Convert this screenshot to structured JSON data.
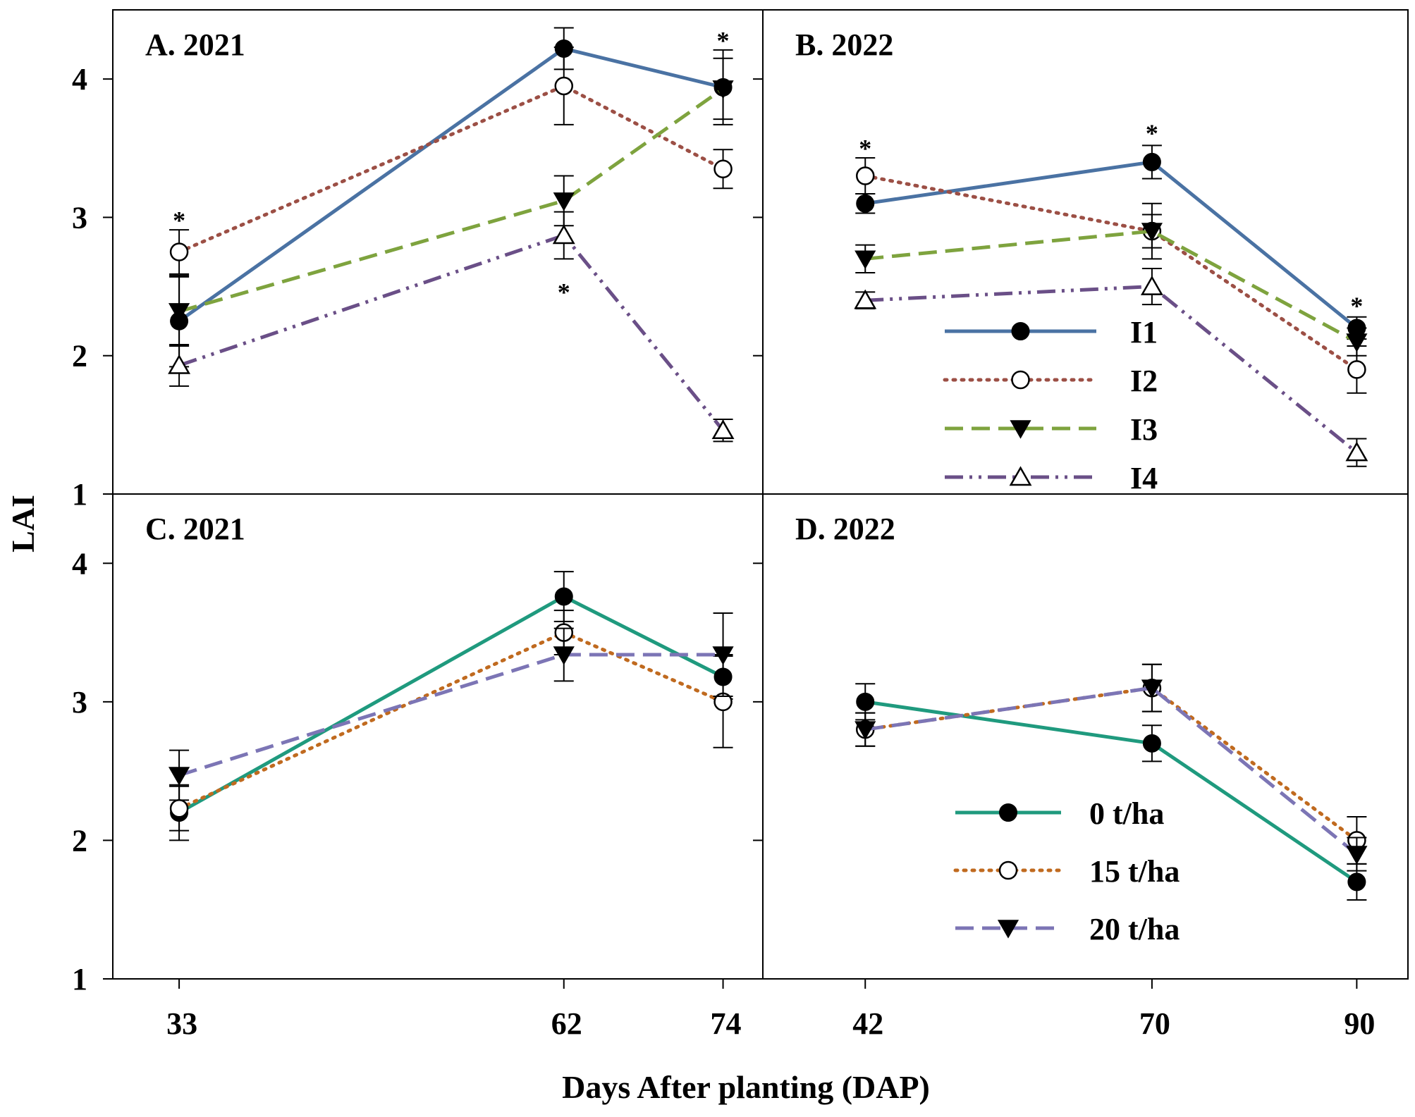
{
  "figure": {
    "y_axis_title": "LAI",
    "x_axis_title": "Days After planting (DAP)",
    "colors": {
      "I1": "#4a72a3",
      "I2": "#9c4f45",
      "I3": "#7ea33e",
      "I4": "#6a4f87",
      "t0": "#1f9a7e",
      "t15": "#c06a1f",
      "t20": "#7c75b5",
      "marker": "#000000"
    }
  },
  "chart_data": [
    {
      "id": "A",
      "type": "line",
      "title": "A. 2021",
      "x": [
        33,
        62,
        74
      ],
      "x_tick_labels": [
        "33",
        "62",
        "74"
      ],
      "xlim": [
        28,
        77
      ],
      "ylim": [
        1,
        4.5
      ],
      "y_ticks": [
        1,
        2,
        3,
        4
      ],
      "y_tick_labels": [
        "1",
        "2",
        "3",
        "4"
      ],
      "series": [
        {
          "name": "I1",
          "key": "I1",
          "values": [
            2.25,
            4.22,
            3.94
          ],
          "err": [
            0.33,
            0.15,
            0.27
          ],
          "marker": "filled-circle",
          "dash": "solid"
        },
        {
          "name": "I2",
          "key": "I2",
          "values": [
            2.75,
            3.95,
            3.35
          ],
          "err": [
            0.16,
            0.28,
            0.14
          ],
          "marker": "open-circle",
          "dash": "dotted"
        },
        {
          "name": "I3",
          "key": "I3",
          "values": [
            2.32,
            3.12,
            3.93
          ],
          "err": [
            0.25,
            0.18,
            0.22
          ],
          "marker": "filled-triangle-down",
          "dash": "dashed"
        },
        {
          "name": "I4",
          "key": "I4",
          "values": [
            1.93,
            2.87,
            1.46
          ],
          "err": [
            0.15,
            0.17,
            0.08
          ],
          "marker": "open-triangle-up",
          "dash": "dashdotdot"
        }
      ],
      "significance": [
        {
          "label": "*",
          "x": 33,
          "y": 3.0
        },
        {
          "label": "*",
          "x": 62,
          "y": 2.48
        },
        {
          "label": "*",
          "x": 74,
          "y": 4.3
        }
      ]
    },
    {
      "id": "B",
      "type": "line",
      "title": "B. 2022",
      "x": [
        42,
        70,
        90
      ],
      "x_tick_labels": [
        "42",
        "70",
        "90"
      ],
      "xlim": [
        32,
        95
      ],
      "ylim": [
        1,
        4.5
      ],
      "y_ticks": [
        1,
        2,
        3,
        4
      ],
      "y_tick_labels": [],
      "series": [
        {
          "name": "I1",
          "key": "I1",
          "values": [
            3.1,
            3.4,
            2.2
          ],
          "err": [
            0.07,
            0.12,
            0.08
          ],
          "marker": "filled-circle",
          "dash": "solid"
        },
        {
          "name": "I2",
          "key": "I2",
          "values": [
            3.3,
            2.9,
            1.9
          ],
          "err": [
            0.13,
            0.2,
            0.17
          ],
          "marker": "open-circle",
          "dash": "dotted"
        },
        {
          "name": "I3",
          "key": "I3",
          "values": [
            2.7,
            2.9,
            2.1
          ],
          "err": [
            0.1,
            0.12,
            0.1
          ],
          "marker": "filled-triangle-down",
          "dash": "dashed"
        },
        {
          "name": "I4",
          "key": "I4",
          "values": [
            2.4,
            2.5,
            1.3
          ],
          "err": [
            0.06,
            0.13,
            0.1
          ],
          "marker": "open-triangle-up",
          "dash": "dashdotdot"
        }
      ],
      "significance": [
        {
          "label": "*",
          "x": 42,
          "y": 3.52
        },
        {
          "label": "*",
          "x": 70,
          "y": 3.63
        },
        {
          "label": "*",
          "x": 90,
          "y": 2.38
        }
      ],
      "legend": {
        "placement": "lower-right",
        "entries": [
          "I1",
          "I2",
          "I3",
          "I4"
        ]
      }
    },
    {
      "id": "C",
      "type": "line",
      "title": "C. 2021",
      "x": [
        33,
        62,
        74
      ],
      "x_tick_labels": [
        "33",
        "62",
        "74"
      ],
      "xlim": [
        28,
        77
      ],
      "ylim": [
        1,
        4.5
      ],
      "y_ticks": [
        1,
        2,
        3,
        4
      ],
      "y_tick_labels": [
        "1",
        "2",
        "3",
        "4"
      ],
      "series": [
        {
          "name": "0 t/ha",
          "key": "t0",
          "values": [
            2.2,
            3.76,
            3.18
          ],
          "err": [
            0.2,
            0.18,
            0.16
          ],
          "marker": "filled-circle",
          "dash": "solid"
        },
        {
          "name": "15 t/ha",
          "key": "t15",
          "values": [
            2.23,
            3.5,
            3.0
          ],
          "err": [
            0.16,
            0.16,
            0.33
          ],
          "marker": "open-circle",
          "dash": "dotted"
        },
        {
          "name": "20 t/ha",
          "key": "t20",
          "values": [
            2.47,
            3.34,
            3.34
          ],
          "err": [
            0.18,
            0.19,
            0.3
          ],
          "marker": "filled-triangle-down",
          "dash": "dashed"
        }
      ]
    },
    {
      "id": "D",
      "type": "line",
      "title": "D. 2022",
      "x": [
        42,
        70,
        90
      ],
      "x_tick_labels": [
        "42",
        "70",
        "90"
      ],
      "xlim": [
        32,
        95
      ],
      "ylim": [
        1,
        4.5
      ],
      "y_ticks": [
        1,
        2,
        3,
        4
      ],
      "y_tick_labels": [],
      "series": [
        {
          "name": "0 t/ha",
          "key": "t0",
          "values": [
            3.0,
            2.7,
            1.7
          ],
          "err": [
            0.13,
            0.13,
            0.13
          ],
          "marker": "filled-circle",
          "dash": "solid"
        },
        {
          "name": "15 t/ha",
          "key": "t15",
          "values": [
            2.8,
            3.1,
            2.0
          ],
          "err": [
            0.12,
            0.17,
            0.17
          ],
          "marker": "open-circle",
          "dash": "dotted"
        },
        {
          "name": "20 t/ha",
          "key": "t20",
          "values": [
            2.8,
            3.1,
            1.9
          ],
          "err": [
            0.12,
            0.17,
            0.12
          ],
          "marker": "filled-triangle-down",
          "dash": "dashed"
        }
      ],
      "legend": {
        "placement": "lower-right",
        "entries": [
          "0 t/ha",
          "15 t/ha",
          "20 t/ha"
        ]
      }
    }
  ]
}
